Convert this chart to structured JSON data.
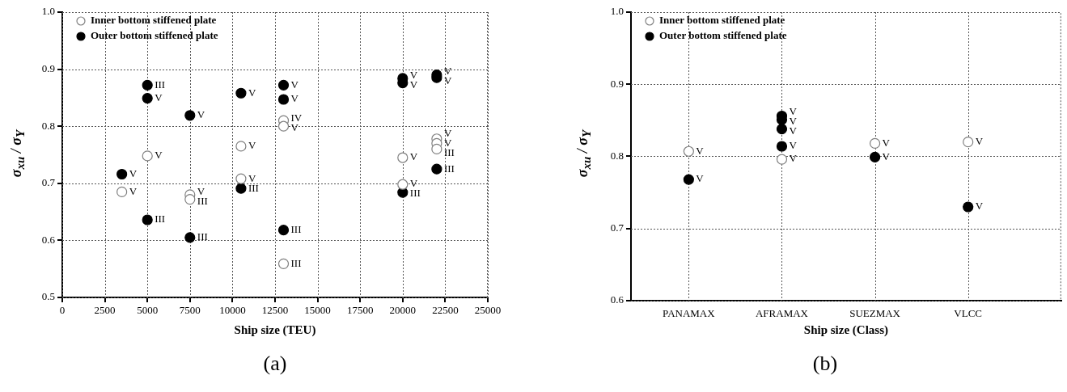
{
  "chart_data": [
    {
      "type": "scatter",
      "xlabel": "Ship size (TEU)",
      "ylabel": "σ$_{xu}$ / σ$_{Y}$",
      "xlim": [
        0,
        25000
      ],
      "xticks": [
        0,
        2500,
        5000,
        7500,
        10000,
        12500,
        15000,
        17500,
        20000,
        22500,
        25000
      ],
      "ylim": [
        0.5,
        1
      ],
      "yticks": [
        0.5,
        0.6,
        0.7,
        0.8,
        0.9,
        {
          "value": 1,
          "label": "1.0"
        }
      ],
      "grid": true,
      "legend": "top left",
      "marker": "circle",
      "annotations": [
        "(a)"
      ],
      "series": [
        {
          "name": "Inner bottom stiffened plate",
          "color": "#808080",
          "x": [
            3500,
            5000,
            7500,
            7500,
            10500,
            10500,
            13000,
            13000,
            13000,
            20000,
            20000,
            22000,
            22000,
            22000
          ],
          "values": [
            0.685,
            0.748,
            0.68,
            0.672,
            0.765,
            0.708,
            0.81,
            0.8,
            0.559,
            0.745,
            0.698,
            0.778,
            0.77,
            0.76
          ],
          "value_labels": [
            "V",
            "V",
            "V",
            "III",
            "V",
            "V",
            "IV",
            "V",
            "III",
            "V",
            "V",
            "V",
            "V",
            "III"
          ]
        },
        {
          "name": "Outer bottom stiffened plate",
          "color": "#000000",
          "x": [
            3500,
            5000,
            5000,
            5000,
            7500,
            7500,
            10500,
            10500,
            13000,
            13000,
            13000,
            20000,
            20000,
            20000,
            22000,
            22000,
            22000
          ],
          "values": [
            0.716,
            0.872,
            0.849,
            0.636,
            0.819,
            0.605,
            0.858,
            0.691,
            0.872,
            0.847,
            0.618,
            0.884,
            0.876,
            0.684,
            0.89,
            0.885,
            0.725
          ],
          "value_labels": [
            "V",
            "III",
            "V",
            "III",
            "V",
            "III",
            "V",
            "III",
            "V",
            "V",
            "III",
            "V",
            "V",
            "III",
            "V",
            "V",
            "III"
          ]
        }
      ]
    },
    {
      "type": "scatter",
      "xlabel": "Ship size (Class)",
      "ylabel": "σ$_{xu}$ / σ$_{Y}$",
      "categories": [
        "PANAMAX",
        "AFRAMAX",
        "SUEZMAX",
        "VLCC"
      ],
      "ylim": [
        0.6,
        1
      ],
      "yticks": [
        0.6,
        0.7,
        0.8,
        0.9,
        {
          "value": 1,
          "label": "1.0"
        }
      ],
      "grid": true,
      "legend": "top left",
      "marker": "circle",
      "annotations": [
        "(b)"
      ],
      "series": [
        {
          "name": "Inner bottom stiffened plate",
          "color": "#808080",
          "x": [
            "PANAMAX",
            "AFRAMAX",
            "SUEZMAX",
            "VLCC"
          ],
          "values": [
            0.807,
            0.796,
            0.818,
            0.82
          ],
          "value_labels": [
            "V",
            "V",
            "V",
            "V"
          ]
        },
        {
          "name": "Outer bottom stiffened plate",
          "color": "#000000",
          "x": [
            "PANAMAX",
            "AFRAMAX",
            "AFRAMAX",
            "AFRAMAX",
            "AFRAMAX",
            "SUEZMAX",
            "VLCC"
          ],
          "values": [
            0.768,
            0.856,
            0.851,
            0.838,
            0.814,
            0.799,
            0.73
          ],
          "value_labels": [
            "V",
            "V",
            "V",
            "V",
            "V",
            "V",
            "V"
          ]
        }
      ]
    }
  ]
}
